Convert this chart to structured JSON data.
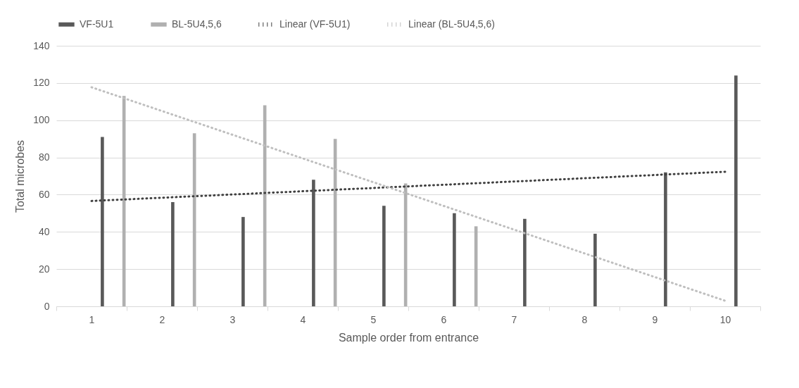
{
  "chart_data": {
    "type": "bar",
    "xlabel": "Sample order from entrance",
    "ylabel": "Total microbes",
    "categories": [
      "1",
      "2",
      "3",
      "4",
      "5",
      "6",
      "7",
      "8",
      "9",
      "10"
    ],
    "series": [
      {
        "name": "VF-5U1",
        "color": "#595959",
        "values": [
          91,
          56,
          48,
          68,
          54,
          50,
          47,
          39,
          72,
          124
        ]
      },
      {
        "name": "BL-5U4,5,6",
        "color": "#b0b0b0",
        "values": [
          113,
          93,
          108,
          90,
          66,
          43,
          null,
          null,
          null,
          null
        ]
      },
      {
        "name": "Linear (VF-5U1)",
        "type": "line",
        "color": "#404040",
        "line_style": "dotted",
        "x": [
          "1",
          "10"
        ],
        "values": [
          56.6,
          72.3
        ]
      },
      {
        "name": "Linear (BL-5U4,5,6)",
        "type": "line",
        "color": "#bfbfbf",
        "line_style": "dotted",
        "x": [
          "1",
          "10"
        ],
        "values": [
          117.7,
          3
        ]
      }
    ],
    "ylim": [
      0,
      140
    ],
    "yticks": [
      0,
      20,
      40,
      60,
      80,
      100,
      120,
      140
    ],
    "grid": "y",
    "legend": "top",
    "marker": "none"
  }
}
